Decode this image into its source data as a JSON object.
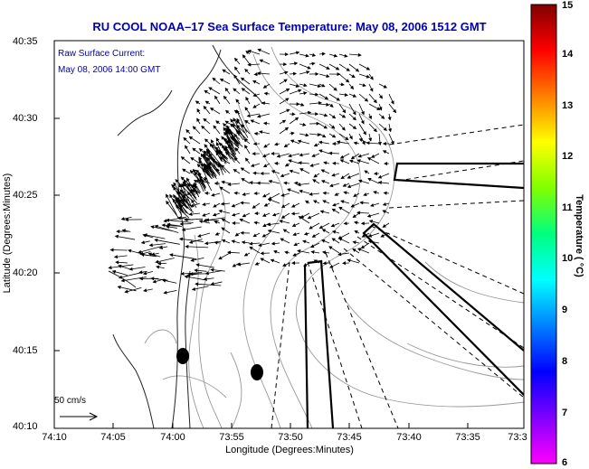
{
  "title": "RU COOL  NOAA–17  Sea Surface Temperature:  May 08, 2006 1512 GMT",
  "annotation": {
    "line1": "Raw Surface Current:",
    "line2": "May 08, 2006 14:00 GMT"
  },
  "axes": {
    "xlabel": "Longitude (Degrees:Minutes)",
    "ylabel": "Latitude (Degrees:Minutes)",
    "x_ticks": [
      "74:10",
      "74:05",
      "74:00",
      "73:55",
      "73:50",
      "73:45",
      "73:40",
      "73:35",
      "73:3"
    ],
    "y_ticks": [
      "40:35",
      "40:30",
      "40:25",
      "40:20",
      "40:15",
      "40:10"
    ]
  },
  "colorbar": {
    "label": "Temperature ( °C)",
    "ticks": [
      "15",
      "14",
      "13",
      "12",
      "11",
      "10",
      "9",
      "8",
      "7",
      "6"
    ],
    "colors": [
      "#ff00ff",
      "#8000ff",
      "#0000ff",
      "#0080ff",
      "#00ffff",
      "#00ff80",
      "#80ff00",
      "#ffff00",
      "#ff8000",
      "#ff0000",
      "#800000"
    ]
  },
  "scale_vector": {
    "label": "50 cm/s"
  },
  "colors": {
    "title": "#0000b0",
    "coast": "#222222",
    "contour": "#888888",
    "vector": "#000000"
  }
}
